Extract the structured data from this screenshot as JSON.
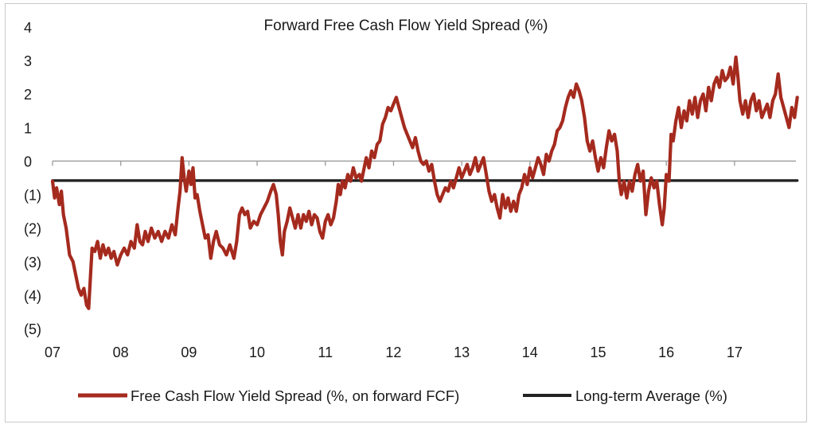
{
  "chart_data": {
    "type": "line",
    "title": "Forward Free Cash Flow Yield Spread (%)",
    "xlabel": "",
    "ylabel": "",
    "x_range": [
      2007.0,
      2017.9
    ],
    "ylim": [
      -5,
      4
    ],
    "y_ticks": [
      4,
      3,
      2,
      1,
      0,
      -1,
      -2,
      -3,
      -4,
      -5
    ],
    "y_tick_labels": [
      "4",
      "3",
      "2",
      "1",
      "0",
      "(1)",
      "(2)",
      "(3)",
      "(4)",
      "(5)"
    ],
    "x_ticks": [
      2007,
      2008,
      2009,
      2010,
      2011,
      2012,
      2013,
      2014,
      2015,
      2016,
      2017
    ],
    "x_tick_labels": [
      "07",
      "08",
      "09",
      "10",
      "11",
      "12",
      "13",
      "14",
      "15",
      "16",
      "17"
    ],
    "grid": false,
    "zero_line": true,
    "legend_position": "bottom",
    "series": [
      {
        "name": "Free Cash Flow Yield Spread (%, on forward FCF)",
        "color": "#a52a1e",
        "points": [
          [
            2007.0,
            -0.6
          ],
          [
            2007.03,
            -1.1
          ],
          [
            2007.06,
            -0.8
          ],
          [
            2007.1,
            -1.3
          ],
          [
            2007.13,
            -0.9
          ],
          [
            2007.16,
            -1.6
          ],
          [
            2007.2,
            -2.0
          ],
          [
            2007.25,
            -2.8
          ],
          [
            2007.3,
            -3.0
          ],
          [
            2007.35,
            -3.5
          ],
          [
            2007.38,
            -3.8
          ],
          [
            2007.42,
            -4.0
          ],
          [
            2007.46,
            -3.8
          ],
          [
            2007.5,
            -4.3
          ],
          [
            2007.53,
            -4.4
          ],
          [
            2007.56,
            -3.3
          ],
          [
            2007.58,
            -2.6
          ],
          [
            2007.62,
            -2.7
          ],
          [
            2007.66,
            -2.4
          ],
          [
            2007.7,
            -2.9
          ],
          [
            2007.74,
            -2.5
          ],
          [
            2007.78,
            -2.8
          ],
          [
            2007.82,
            -2.6
          ],
          [
            2007.86,
            -2.9
          ],
          [
            2007.9,
            -2.7
          ],
          [
            2007.95,
            -3.1
          ],
          [
            2008.0,
            -2.8
          ],
          [
            2008.05,
            -2.6
          ],
          [
            2008.1,
            -2.8
          ],
          [
            2008.15,
            -2.4
          ],
          [
            2008.2,
            -2.6
          ],
          [
            2008.24,
            -1.9
          ],
          [
            2008.28,
            -2.4
          ],
          [
            2008.32,
            -2.5
          ],
          [
            2008.36,
            -2.1
          ],
          [
            2008.4,
            -2.4
          ],
          [
            2008.45,
            -2.0
          ],
          [
            2008.5,
            -2.3
          ],
          [
            2008.55,
            -2.1
          ],
          [
            2008.6,
            -2.4
          ],
          [
            2008.65,
            -2.1
          ],
          [
            2008.7,
            -2.3
          ],
          [
            2008.75,
            -1.9
          ],
          [
            2008.8,
            -2.2
          ],
          [
            2008.84,
            -1.4
          ],
          [
            2008.87,
            -0.9
          ],
          [
            2008.9,
            0.1
          ],
          [
            2008.93,
            -0.5
          ],
          [
            2008.96,
            -0.9
          ],
          [
            2009.0,
            -0.3
          ],
          [
            2009.03,
            -0.7
          ],
          [
            2009.06,
            -0.2
          ],
          [
            2009.09,
            -1.1
          ],
          [
            2009.12,
            -1.0
          ],
          [
            2009.16,
            -1.5
          ],
          [
            2009.2,
            -1.9
          ],
          [
            2009.24,
            -2.3
          ],
          [
            2009.28,
            -2.2
          ],
          [
            2009.32,
            -2.9
          ],
          [
            2009.36,
            -2.4
          ],
          [
            2009.4,
            -2.1
          ],
          [
            2009.45,
            -2.5
          ],
          [
            2009.5,
            -2.6
          ],
          [
            2009.55,
            -2.8
          ],
          [
            2009.6,
            -2.5
          ],
          [
            2009.66,
            -2.9
          ],
          [
            2009.7,
            -2.4
          ],
          [
            2009.74,
            -1.6
          ],
          [
            2009.78,
            -1.4
          ],
          [
            2009.82,
            -1.6
          ],
          [
            2009.86,
            -1.5
          ],
          [
            2009.9,
            -2.0
          ],
          [
            2009.95,
            -1.8
          ],
          [
            2010.0,
            -1.9
          ],
          [
            2010.05,
            -1.6
          ],
          [
            2010.1,
            -1.4
          ],
          [
            2010.15,
            -1.2
          ],
          [
            2010.2,
            -0.9
          ],
          [
            2010.24,
            -0.7
          ],
          [
            2010.28,
            -1.0
          ],
          [
            2010.31,
            -1.6
          ],
          [
            2010.34,
            -2.4
          ],
          [
            2010.37,
            -2.8
          ],
          [
            2010.4,
            -2.1
          ],
          [
            2010.44,
            -1.8
          ],
          [
            2010.48,
            -1.4
          ],
          [
            2010.52,
            -1.7
          ],
          [
            2010.56,
            -2.0
          ],
          [
            2010.6,
            -1.6
          ],
          [
            2010.64,
            -2.0
          ],
          [
            2010.68,
            -1.6
          ],
          [
            2010.72,
            -1.8
          ],
          [
            2010.76,
            -1.5
          ],
          [
            2010.8,
            -1.9
          ],
          [
            2010.84,
            -1.6
          ],
          [
            2010.88,
            -1.7
          ],
          [
            2010.92,
            -2.1
          ],
          [
            2010.96,
            -2.3
          ],
          [
            2011.0,
            -1.8
          ],
          [
            2011.04,
            -1.6
          ],
          [
            2011.08,
            -1.9
          ],
          [
            2011.12,
            -1.7
          ],
          [
            2011.16,
            -1.2
          ],
          [
            2011.19,
            -0.7
          ],
          [
            2011.22,
            -1.0
          ],
          [
            2011.25,
            -0.6
          ],
          [
            2011.29,
            -0.8
          ],
          [
            2011.33,
            -0.4
          ],
          [
            2011.37,
            -0.6
          ],
          [
            2011.41,
            -0.2
          ],
          [
            2011.45,
            -0.5
          ],
          [
            2011.5,
            -0.4
          ],
          [
            2011.53,
            -0.6
          ],
          [
            2011.56,
            -0.3
          ],
          [
            2011.6,
            0.1
          ],
          [
            2011.64,
            -0.2
          ],
          [
            2011.68,
            0.3
          ],
          [
            2011.72,
            0.1
          ],
          [
            2011.76,
            0.5
          ],
          [
            2011.8,
            0.6
          ],
          [
            2011.84,
            1.1
          ],
          [
            2011.88,
            1.3
          ],
          [
            2011.92,
            1.6
          ],
          [
            2011.96,
            1.5
          ],
          [
            2012.0,
            1.7
          ],
          [
            2012.04,
            1.9
          ],
          [
            2012.08,
            1.6
          ],
          [
            2012.12,
            1.3
          ],
          [
            2012.16,
            1.0
          ],
          [
            2012.2,
            0.8
          ],
          [
            2012.24,
            0.6
          ],
          [
            2012.28,
            0.4
          ],
          [
            2012.32,
            0.7
          ],
          [
            2012.36,
            0.3
          ],
          [
            2012.4,
            0.0
          ],
          [
            2012.44,
            -0.1
          ],
          [
            2012.48,
            0.0
          ],
          [
            2012.52,
            -0.3
          ],
          [
            2012.56,
            -0.1
          ],
          [
            2012.6,
            -0.6
          ],
          [
            2012.64,
            -1.0
          ],
          [
            2012.68,
            -1.2
          ],
          [
            2012.72,
            -1.0
          ],
          [
            2012.76,
            -0.8
          ],
          [
            2012.8,
            -0.9
          ],
          [
            2012.84,
            -0.6
          ],
          [
            2012.88,
            -0.8
          ],
          [
            2012.92,
            -0.5
          ],
          [
            2012.96,
            -0.2
          ],
          [
            2013.0,
            -0.5
          ],
          [
            2013.04,
            -0.3
          ],
          [
            2013.08,
            -0.1
          ],
          [
            2013.12,
            -0.4
          ],
          [
            2013.16,
            -0.2
          ],
          [
            2013.2,
            0.1
          ],
          [
            2013.24,
            -0.3
          ],
          [
            2013.28,
            -0.1
          ],
          [
            2013.32,
            0.1
          ],
          [
            2013.36,
            -0.4
          ],
          [
            2013.4,
            -0.9
          ],
          [
            2013.44,
            -1.2
          ],
          [
            2013.48,
            -1.0
          ],
          [
            2013.52,
            -1.4
          ],
          [
            2013.56,
            -1.7
          ],
          [
            2013.6,
            -1.0
          ],
          [
            2013.64,
            -1.4
          ],
          [
            2013.68,
            -1.1
          ],
          [
            2013.72,
            -1.5
          ],
          [
            2013.76,
            -1.2
          ],
          [
            2013.8,
            -1.5
          ],
          [
            2013.84,
            -1.0
          ],
          [
            2013.88,
            -0.8
          ],
          [
            2013.92,
            -0.4
          ],
          [
            2013.96,
            -0.7
          ],
          [
            2014.0,
            -0.2
          ],
          [
            2014.04,
            -0.5
          ],
          [
            2014.08,
            -0.2
          ],
          [
            2014.12,
            0.1
          ],
          [
            2014.16,
            -0.1
          ],
          [
            2014.2,
            -0.4
          ],
          [
            2014.24,
            0.2
          ],
          [
            2014.28,
            0.0
          ],
          [
            2014.32,
            0.3
          ],
          [
            2014.36,
            0.5
          ],
          [
            2014.4,
            0.9
          ],
          [
            2014.44,
            1.0
          ],
          [
            2014.48,
            1.2
          ],
          [
            2014.52,
            1.6
          ],
          [
            2014.56,
            1.9
          ],
          [
            2014.6,
            2.1
          ],
          [
            2014.64,
            1.9
          ],
          [
            2014.68,
            2.3
          ],
          [
            2014.72,
            2.1
          ],
          [
            2014.76,
            1.8
          ],
          [
            2014.8,
            1.3
          ],
          [
            2014.84,
            0.6
          ],
          [
            2014.88,
            0.3
          ],
          [
            2014.92,
            0.6
          ],
          [
            2014.96,
            0.1
          ],
          [
            2015.0,
            -0.3
          ],
          [
            2015.04,
            0.1
          ],
          [
            2015.08,
            -0.2
          ],
          [
            2015.12,
            0.4
          ],
          [
            2015.16,
            0.9
          ],
          [
            2015.2,
            0.6
          ],
          [
            2015.24,
            0.8
          ],
          [
            2015.28,
            0.3
          ],
          [
            2015.31,
            -0.6
          ],
          [
            2015.34,
            -1.0
          ],
          [
            2015.38,
            -0.6
          ],
          [
            2015.42,
            -1.1
          ],
          [
            2015.46,
            -0.6
          ],
          [
            2015.5,
            -0.9
          ],
          [
            2015.54,
            -0.4
          ],
          [
            2015.58,
            -0.1
          ],
          [
            2015.62,
            -0.6
          ],
          [
            2015.66,
            -0.3
          ],
          [
            2015.7,
            -1.6
          ],
          [
            2015.74,
            -0.9
          ],
          [
            2015.78,
            -0.5
          ],
          [
            2015.82,
            -0.8
          ],
          [
            2015.86,
            -0.6
          ],
          [
            2015.9,
            -1.3
          ],
          [
            2015.94,
            -1.9
          ],
          [
            2015.97,
            -1.4
          ],
          [
            2016.0,
            -0.4
          ],
          [
            2016.04,
            -0.6
          ],
          [
            2016.07,
            0.8
          ],
          [
            2016.1,
            0.6
          ],
          [
            2016.14,
            1.2
          ],
          [
            2016.18,
            1.6
          ],
          [
            2016.22,
            1.0
          ],
          [
            2016.26,
            1.5
          ],
          [
            2016.3,
            1.2
          ],
          [
            2016.34,
            1.8
          ],
          [
            2016.38,
            1.4
          ],
          [
            2016.42,
            1.9
          ],
          [
            2016.46,
            1.3
          ],
          [
            2016.5,
            1.8
          ],
          [
            2016.54,
            2.0
          ],
          [
            2016.58,
            1.5
          ],
          [
            2016.62,
            2.2
          ],
          [
            2016.66,
            1.8
          ],
          [
            2016.7,
            2.3
          ],
          [
            2016.74,
            2.5
          ],
          [
            2016.78,
            2.2
          ],
          [
            2016.82,
            2.7
          ],
          [
            2016.86,
            2.4
          ],
          [
            2016.9,
            2.5
          ],
          [
            2016.94,
            2.8
          ],
          [
            2016.98,
            2.3
          ],
          [
            2017.02,
            3.1
          ],
          [
            2017.05,
            2.5
          ],
          [
            2017.08,
            1.8
          ],
          [
            2017.12,
            1.4
          ],
          [
            2017.16,
            1.8
          ],
          [
            2017.2,
            1.3
          ],
          [
            2017.24,
            1.8
          ],
          [
            2017.28,
            2.0
          ],
          [
            2017.32,
            1.5
          ],
          [
            2017.36,
            1.8
          ],
          [
            2017.4,
            1.3
          ],
          [
            2017.44,
            1.5
          ],
          [
            2017.48,
            1.7
          ],
          [
            2017.52,
            1.3
          ],
          [
            2017.56,
            1.8
          ],
          [
            2017.6,
            2.0
          ],
          [
            2017.64,
            2.6
          ],
          [
            2017.68,
            1.9
          ],
          [
            2017.72,
            1.6
          ],
          [
            2017.76,
            1.3
          ],
          [
            2017.8,
            1.0
          ],
          [
            2017.84,
            1.6
          ],
          [
            2017.88,
            1.3
          ],
          [
            2017.92,
            1.9
          ]
        ]
      },
      {
        "name": "Long-term Average (%)",
        "color": "#222222",
        "points": [
          [
            2007.0,
            -0.58
          ],
          [
            2017.92,
            -0.58
          ]
        ]
      }
    ]
  }
}
